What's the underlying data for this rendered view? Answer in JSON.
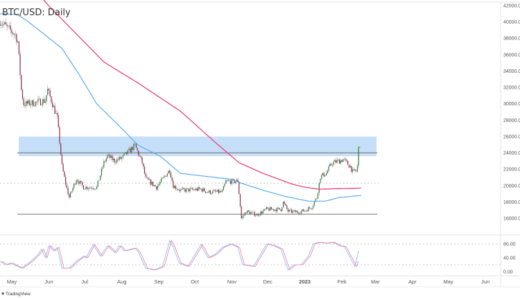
{
  "chart_data": {
    "type": "candlestick",
    "title": "BTC/USD: Daily",
    "x_unit": "days since 2022-05-01",
    "ylim": [
      14500,
      42600
    ],
    "y_ticks": [
      "42000.00",
      "40000.00",
      "38000.00",
      "36000.00",
      "34000.00",
      "32000.00",
      "30000.00",
      "28000.00",
      "26000.00",
      "24000.00",
      "22000.00",
      "20000.00",
      "18000.00",
      "16000.00"
    ],
    "y_tick_values": [
      42000,
      40000,
      38000,
      36000,
      34000,
      32000,
      30000,
      28000,
      26000,
      24000,
      22000,
      20000,
      18000,
      16000
    ],
    "x_ticks": [
      {
        "label": "May",
        "day": 0
      },
      {
        "label": "Jun",
        "day": 31
      },
      {
        "label": "Jul",
        "day": 61
      },
      {
        "label": "Aug",
        "day": 92
      },
      {
        "label": "Sep",
        "day": 123
      },
      {
        "label": "Oct",
        "day": 153
      },
      {
        "label": "Nov",
        "day": 184
      },
      {
        "label": "Dec",
        "day": 214
      },
      {
        "label": "2023",
        "day": 245
      },
      {
        "label": "Feb",
        "day": 276
      },
      {
        "label": "Mar",
        "day": 304
      },
      {
        "label": "Apr",
        "day": 335
      },
      {
        "label": "May",
        "day": 365
      },
      {
        "label": "Jun",
        "day": 396
      }
    ],
    "x_range_days": [
      -10,
      406
    ],
    "price_close_keypoints": [
      [
        -10,
        40140
      ],
      [
        -4,
        39290
      ],
      [
        3,
        38440
      ],
      [
        5,
        37600
      ],
      [
        8,
        31670
      ],
      [
        10,
        29970
      ],
      [
        13,
        30000
      ],
      [
        20,
        30150
      ],
      [
        28,
        30400
      ],
      [
        30,
        31700
      ],
      [
        38,
        28280
      ],
      [
        42,
        22360
      ],
      [
        45,
        20240
      ],
      [
        48,
        18550
      ],
      [
        54,
        20830
      ],
      [
        60,
        19800
      ],
      [
        71,
        19800
      ],
      [
        77,
        22780
      ],
      [
        80,
        23630
      ],
      [
        86,
        23030
      ],
      [
        92,
        23370
      ],
      [
        103,
        24900
      ],
      [
        109,
        22780
      ],
      [
        112,
        20830
      ],
      [
        121,
        19800
      ],
      [
        132,
        21930
      ],
      [
        135,
        19990
      ],
      [
        141,
        19400
      ],
      [
        158,
        19560
      ],
      [
        164,
        19220
      ],
      [
        176,
        19220
      ],
      [
        179,
        20500
      ],
      [
        187,
        20500
      ],
      [
        189,
        20600
      ],
      [
        192,
        16000
      ],
      [
        196,
        16850
      ],
      [
        205,
        16430
      ],
      [
        213,
        17100
      ],
      [
        225,
        17100
      ],
      [
        227,
        17950
      ],
      [
        231,
        16850
      ],
      [
        239,
        16770
      ],
      [
        245,
        16940
      ],
      [
        251,
        17450
      ],
      [
        255,
        18550
      ],
      [
        258,
        21090
      ],
      [
        263,
        21510
      ],
      [
        266,
        22360
      ],
      [
        268,
        22780
      ],
      [
        274,
        23030
      ],
      [
        277,
        23200
      ],
      [
        283,
        22360
      ],
      [
        285,
        21680
      ],
      [
        288,
        21760
      ],
      [
        289,
        22360
      ],
      [
        290,
        24560
      ],
      [
        291,
        24700
      ]
    ],
    "sma_200_keypoints": [
      [
        26,
        42800
      ],
      [
        30,
        42100
      ],
      [
        77,
        35100
      ],
      [
        106,
        32500
      ],
      [
        141,
        29100
      ],
      [
        170,
        25300
      ],
      [
        190,
        22800
      ],
      [
        210,
        21500
      ],
      [
        234,
        20200
      ],
      [
        245,
        19800
      ],
      [
        257,
        19560
      ],
      [
        292,
        19700
      ]
    ],
    "sma_100_keypoints": [
      [
        -10,
        41000
      ],
      [
        5,
        40900
      ],
      [
        13,
        40100
      ],
      [
        28,
        38400
      ],
      [
        42,
        36750
      ],
      [
        57,
        33400
      ],
      [
        71,
        30000
      ],
      [
        89,
        27400
      ],
      [
        106,
        24900
      ],
      [
        124,
        23600
      ],
      [
        141,
        21500
      ],
      [
        164,
        21100
      ],
      [
        182,
        20800
      ],
      [
        193,
        20240
      ],
      [
        211,
        19400
      ],
      [
        228,
        18700
      ],
      [
        248,
        18100
      ],
      [
        262,
        18100
      ],
      [
        274,
        18550
      ],
      [
        292,
        18800
      ]
    ],
    "resistance_zone": {
      "from": 23600,
      "to": 26000,
      "end_day": 305
    },
    "horizontal_levels": [
      {
        "price": 24000,
        "style": "solid"
      },
      {
        "price": 16500,
        "style": "solid"
      },
      {
        "price": 20300,
        "style": "dotted"
      }
    ],
    "oscillator": {
      "type": "stochastic-rsi",
      "ylim": [
        0,
        100
      ],
      "y_ticks": [
        "80.00",
        "40.00",
        "0.00"
      ],
      "y_tick_values": [
        80,
        40,
        0
      ],
      "bands": [
        80,
        20
      ],
      "k_keypoints": [
        [
          -10,
          30
        ],
        [
          -5,
          20
        ],
        [
          -1,
          25
        ],
        [
          8,
          10
        ],
        [
          16,
          30
        ],
        [
          22,
          50
        ],
        [
          25,
          65
        ],
        [
          28,
          40
        ],
        [
          31,
          75
        ],
        [
          35,
          60
        ],
        [
          38,
          70
        ],
        [
          42,
          10
        ],
        [
          48,
          10
        ],
        [
          54,
          30
        ],
        [
          60,
          45
        ],
        [
          62,
          40
        ],
        [
          68,
          78
        ],
        [
          74,
          45
        ],
        [
          80,
          75
        ],
        [
          86,
          55
        ],
        [
          90,
          75
        ],
        [
          94,
          60
        ],
        [
          103,
          68
        ],
        [
          106,
          55
        ],
        [
          112,
          10
        ],
        [
          119,
          5
        ],
        [
          126,
          15
        ],
        [
          132,
          90
        ],
        [
          135,
          70
        ],
        [
          140,
          25
        ],
        [
          147,
          15
        ],
        [
          155,
          60
        ],
        [
          158,
          78
        ],
        [
          164,
          40
        ],
        [
          170,
          50
        ],
        [
          176,
          70
        ],
        [
          183,
          80
        ],
        [
          189,
          70
        ],
        [
          193,
          20
        ],
        [
          202,
          15
        ],
        [
          213,
          80
        ],
        [
          219,
          75
        ],
        [
          225,
          65
        ],
        [
          231,
          5
        ],
        [
          236,
          20
        ],
        [
          242,
          20
        ],
        [
          248,
          45
        ],
        [
          252,
          80
        ],
        [
          257,
          85
        ],
        [
          263,
          82
        ],
        [
          268,
          85
        ],
        [
          274,
          75
        ],
        [
          278,
          72
        ],
        [
          283,
          40
        ],
        [
          287,
          15
        ],
        [
          290,
          60
        ]
      ]
    },
    "colors": {
      "up": "#2f7a3c",
      "down": "#8a2748",
      "wick": "#9a9a9a",
      "sma200": "#ec407a",
      "sma100": "#5aa9f0",
      "zone": "#bcd9f7",
      "k": "#8ec5f5",
      "d": "#f48fb1"
    }
  },
  "branding": {
    "logo_text": "TradingView"
  }
}
